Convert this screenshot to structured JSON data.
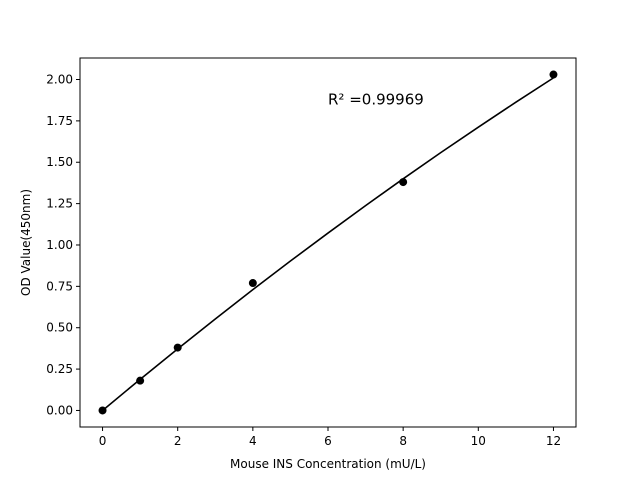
{
  "chart_data": {
    "type": "scatter",
    "xlabel": "Mouse INS Concentration (mU/L)",
    "ylabel": "OD Value(450nm)",
    "xlim": [
      -0.6,
      12.6
    ],
    "ylim": [
      -0.1,
      2.13
    ],
    "x_ticks": [
      0,
      2,
      4,
      6,
      8,
      10,
      12
    ],
    "y_ticks": [
      0.0,
      0.25,
      0.5,
      0.75,
      1.0,
      1.25,
      1.5,
      1.75,
      2.0
    ],
    "x_tick_labels": [
      "0",
      "2",
      "4",
      "6",
      "8",
      "10",
      "12"
    ],
    "y_tick_labels": [
      "0.00",
      "0.25",
      "0.50",
      "0.75",
      "1.00",
      "1.25",
      "1.50",
      "1.75",
      "2.00"
    ],
    "grid": false,
    "series": [
      {
        "type": "scatter",
        "color": "#000000",
        "x": [
          0,
          1,
          2,
          4,
          8,
          12
        ],
        "y": [
          0.0,
          0.18,
          0.38,
          0.77,
          1.38,
          2.03
        ]
      },
      {
        "type": "line",
        "color": "#000000",
        "x": [
          0,
          1,
          2,
          3,
          4,
          5,
          6,
          7,
          8,
          9,
          10,
          11,
          12
        ],
        "y": [
          0.0,
          0.188,
          0.372,
          0.553,
          0.73,
          0.903,
          1.072,
          1.238,
          1.4,
          1.558,
          1.712,
          1.863,
          2.01
        ]
      }
    ],
    "annotation": {
      "text": "R² =0.99969",
      "x": 6.0,
      "y": 1.85
    }
  }
}
